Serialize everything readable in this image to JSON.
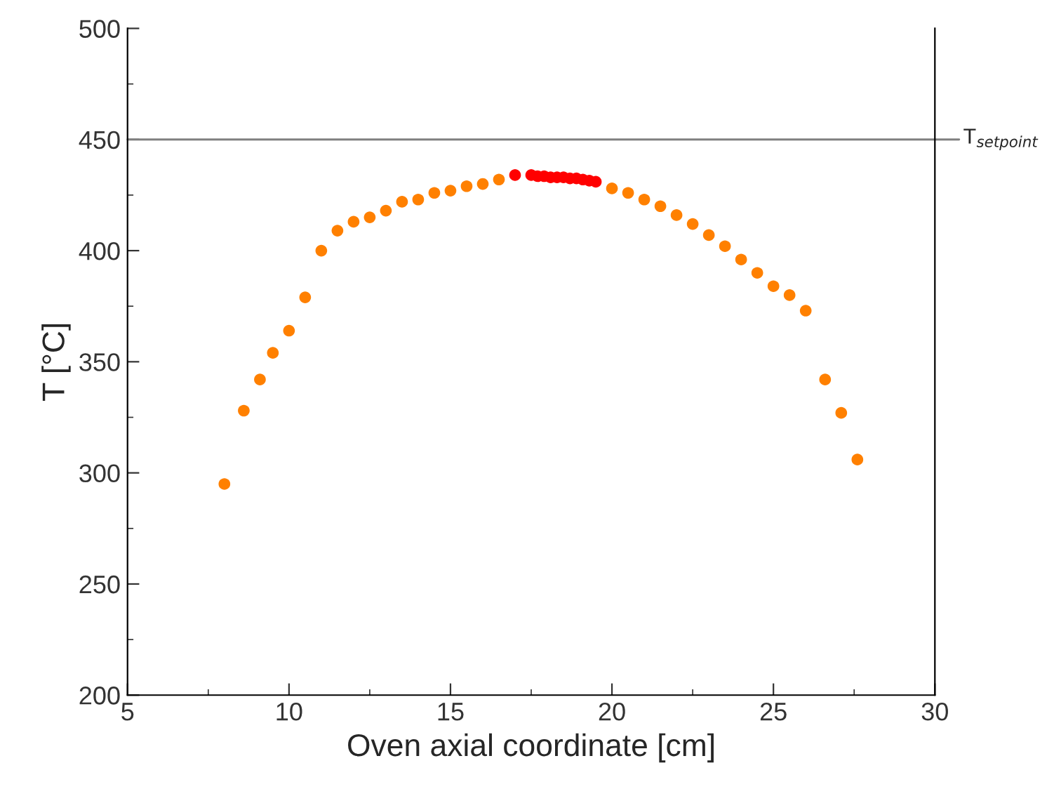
{
  "chart_data": {
    "type": "scatter",
    "xlabel": "Oven axial coordinate [cm]",
    "ylabel": "T [°C]",
    "xlim": [
      5,
      30
    ],
    "xticks": [
      5,
      10,
      15,
      20,
      25,
      30
    ],
    "ylim": [
      200,
      500
    ],
    "yticks": [
      200,
      250,
      300,
      350,
      400,
      450,
      500
    ],
    "grid": false,
    "marker": "circle",
    "ref_lines": [
      {
        "axis": "y",
        "value": 450,
        "label": "T$_{setpoint}$",
        "color": "#7f7f7f",
        "line_style": "solid"
      }
    ],
    "series": [
      {
        "color": "#ff8000",
        "x": [
          8.0,
          8.6,
          9.1,
          9.5,
          10.0,
          10.5,
          11.0,
          11.5,
          12.0,
          12.5,
          13.0,
          13.5,
          14.0,
          14.5,
          15.0,
          15.5,
          16.0,
          16.5,
          20.0,
          20.5,
          21.0,
          21.5,
          22.0,
          22.5,
          23.0,
          23.5,
          24.0,
          24.5,
          25.0,
          25.5,
          26.0,
          26.6,
          27.1,
          27.6
        ],
        "values": [
          295,
          328,
          342,
          354,
          364,
          379,
          400,
          409,
          413,
          415,
          418,
          422,
          423,
          426,
          427,
          429,
          430,
          432,
          428,
          426,
          423,
          420,
          416,
          412,
          407,
          402,
          396,
          390,
          384,
          380,
          373,
          342,
          327,
          306
        ]
      },
      {
        "color": "#ff0000",
        "x": [
          17.0,
          17.5,
          17.7,
          17.9,
          18.1,
          18.3,
          18.5,
          18.7,
          18.9,
          19.1,
          19.3,
          19.5
        ],
        "values": [
          434,
          434,
          433.5,
          433.5,
          433,
          433,
          433,
          432.5,
          432.5,
          432,
          431.5,
          431
        ]
      }
    ]
  }
}
